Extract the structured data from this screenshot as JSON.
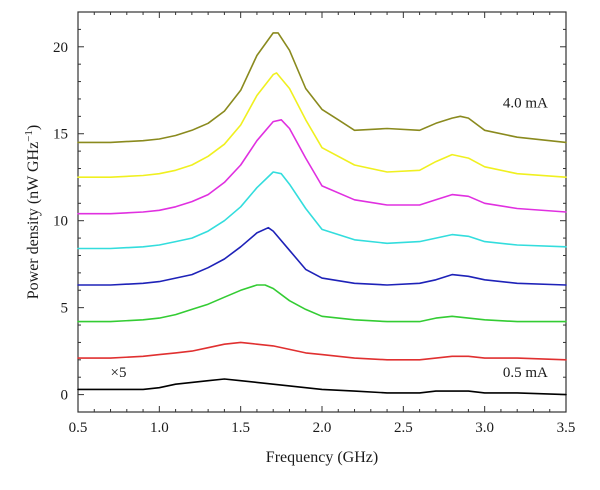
{
  "chart_data": {
    "type": "line",
    "title": "",
    "xlabel": "Frequency (GHz)",
    "ylabel_main": "Power density (nW GHz",
    "ylabel_sup": "−1",
    "ylabel_close": ")",
    "xlim": [
      0.5,
      3.5
    ],
    "ylim": [
      -1,
      22
    ],
    "xticks": [
      0.5,
      1.0,
      1.5,
      2.0,
      2.5,
      3.0,
      3.5
    ],
    "xtick_labels": [
      "0.5",
      "1.0",
      "1.5",
      "2.0",
      "2.5",
      "3.0",
      "3.5"
    ],
    "yticks": [
      0,
      5,
      10,
      15,
      20
    ],
    "ytick_labels": [
      "0",
      "5",
      "10",
      "15",
      "20"
    ],
    "grid": false,
    "annotations": [
      {
        "text": "4.0 mA",
        "x": 3.25,
        "y": 16.5
      },
      {
        "text": "0.5 mA",
        "x": 3.25,
        "y": 1.0
      },
      {
        "text": "×5",
        "x": 0.7,
        "y": 1.0
      }
    ],
    "series": [
      {
        "color": "#000000",
        "x": [
          0.5,
          0.7,
          0.9,
          1.0,
          1.1,
          1.2,
          1.3,
          1.4,
          1.5,
          1.6,
          1.7,
          1.8,
          1.9,
          2.0,
          2.2,
          2.4,
          2.6,
          2.7,
          2.8,
          2.9,
          3.0,
          3.2,
          3.5
        ],
        "y": [
          0.3,
          0.3,
          0.3,
          0.4,
          0.6,
          0.7,
          0.8,
          0.9,
          0.8,
          0.7,
          0.6,
          0.5,
          0.4,
          0.3,
          0.2,
          0.1,
          0.1,
          0.2,
          0.2,
          0.2,
          0.1,
          0.1,
          0.0
        ]
      },
      {
        "color": "#e03030",
        "x": [
          0.5,
          0.7,
          0.9,
          1.0,
          1.1,
          1.2,
          1.3,
          1.4,
          1.5,
          1.6,
          1.7,
          1.8,
          1.9,
          2.0,
          2.2,
          2.4,
          2.6,
          2.7,
          2.8,
          2.9,
          3.0,
          3.2,
          3.5
        ],
        "y": [
          2.1,
          2.1,
          2.2,
          2.3,
          2.4,
          2.5,
          2.7,
          2.9,
          3.0,
          2.9,
          2.8,
          2.6,
          2.4,
          2.3,
          2.1,
          2.0,
          2.0,
          2.1,
          2.2,
          2.2,
          2.1,
          2.1,
          2.0
        ]
      },
      {
        "color": "#33cc33",
        "x": [
          0.5,
          0.7,
          0.9,
          1.0,
          1.1,
          1.2,
          1.3,
          1.4,
          1.5,
          1.6,
          1.65,
          1.7,
          1.8,
          1.9,
          2.0,
          2.2,
          2.4,
          2.6,
          2.7,
          2.8,
          2.9,
          3.0,
          3.2,
          3.5
        ],
        "y": [
          4.2,
          4.2,
          4.3,
          4.4,
          4.6,
          4.9,
          5.2,
          5.6,
          6.0,
          6.3,
          6.3,
          6.1,
          5.4,
          4.9,
          4.5,
          4.3,
          4.2,
          4.2,
          4.4,
          4.5,
          4.4,
          4.3,
          4.2,
          4.2
        ]
      },
      {
        "color": "#1e22b8",
        "x": [
          0.5,
          0.7,
          0.9,
          1.0,
          1.1,
          1.2,
          1.3,
          1.4,
          1.5,
          1.6,
          1.67,
          1.7,
          1.8,
          1.9,
          2.0,
          2.2,
          2.4,
          2.6,
          2.7,
          2.8,
          2.9,
          3.0,
          3.2,
          3.5
        ],
        "y": [
          6.3,
          6.3,
          6.4,
          6.5,
          6.7,
          6.9,
          7.3,
          7.8,
          8.5,
          9.3,
          9.6,
          9.4,
          8.3,
          7.2,
          6.7,
          6.4,
          6.3,
          6.4,
          6.6,
          6.9,
          6.8,
          6.6,
          6.4,
          6.3
        ]
      },
      {
        "color": "#33dddd",
        "x": [
          0.5,
          0.7,
          0.9,
          1.0,
          1.1,
          1.2,
          1.3,
          1.4,
          1.5,
          1.6,
          1.7,
          1.75,
          1.8,
          1.9,
          2.0,
          2.2,
          2.4,
          2.6,
          2.7,
          2.8,
          2.9,
          3.0,
          3.2,
          3.5
        ],
        "y": [
          8.4,
          8.4,
          8.5,
          8.6,
          8.8,
          9.0,
          9.4,
          10.0,
          10.8,
          11.9,
          12.8,
          12.7,
          12.1,
          10.7,
          9.5,
          8.9,
          8.7,
          8.8,
          9.0,
          9.2,
          9.1,
          8.8,
          8.6,
          8.5
        ]
      },
      {
        "color": "#e030e0",
        "x": [
          0.5,
          0.7,
          0.9,
          1.0,
          1.1,
          1.2,
          1.3,
          1.4,
          1.5,
          1.6,
          1.7,
          1.75,
          1.8,
          1.9,
          2.0,
          2.2,
          2.4,
          2.6,
          2.7,
          2.8,
          2.9,
          3.0,
          3.2,
          3.5
        ],
        "y": [
          10.4,
          10.4,
          10.5,
          10.6,
          10.8,
          11.1,
          11.5,
          12.2,
          13.2,
          14.6,
          15.7,
          15.8,
          15.3,
          13.6,
          12.0,
          11.2,
          10.9,
          10.9,
          11.2,
          11.5,
          11.4,
          11.0,
          10.7,
          10.5
        ]
      },
      {
        "color": "#f0f020",
        "x": [
          0.5,
          0.7,
          0.9,
          1.0,
          1.1,
          1.2,
          1.3,
          1.4,
          1.5,
          1.6,
          1.7,
          1.72,
          1.8,
          1.9,
          2.0,
          2.2,
          2.4,
          2.6,
          2.7,
          2.8,
          2.9,
          3.0,
          3.2,
          3.5
        ],
        "y": [
          12.5,
          12.5,
          12.6,
          12.7,
          12.9,
          13.2,
          13.7,
          14.4,
          15.5,
          17.2,
          18.4,
          18.5,
          17.6,
          15.8,
          14.2,
          13.2,
          12.8,
          12.9,
          13.4,
          13.8,
          13.6,
          13.1,
          12.7,
          12.5
        ]
      },
      {
        "color": "#8a8a1e",
        "x": [
          0.5,
          0.7,
          0.9,
          1.0,
          1.1,
          1.2,
          1.3,
          1.4,
          1.5,
          1.6,
          1.7,
          1.73,
          1.8,
          1.9,
          2.0,
          2.1,
          2.2,
          2.4,
          2.6,
          2.7,
          2.8,
          2.85,
          2.9,
          3.0,
          3.2,
          3.5
        ],
        "y": [
          14.5,
          14.5,
          14.6,
          14.7,
          14.9,
          15.2,
          15.6,
          16.3,
          17.5,
          19.5,
          20.8,
          20.8,
          19.8,
          17.6,
          16.4,
          15.8,
          15.2,
          15.3,
          15.2,
          15.6,
          15.9,
          16.0,
          15.9,
          15.2,
          14.8,
          14.5
        ]
      }
    ]
  }
}
